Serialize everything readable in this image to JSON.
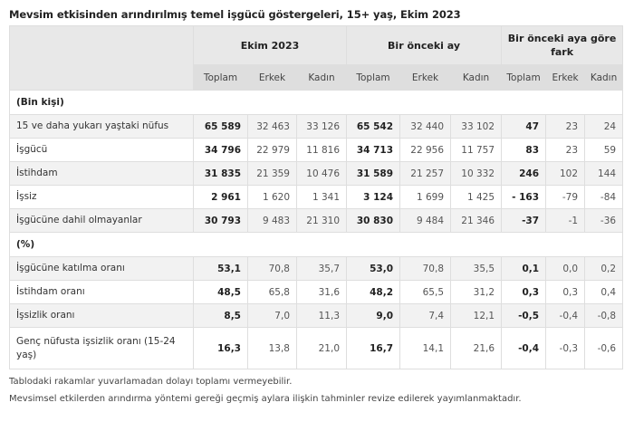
{
  "title": "Mevsim etkisinden arındırılmış temel işgücü göstergeleri, 15+ yaş, Ekim 2023",
  "header": {
    "groups": [
      "Ekim 2023",
      "Bir önceki ay",
      "Bir önceki aya göre fark"
    ],
    "subcolumns": [
      "Toplam",
      "Erkek",
      "Kadın",
      "Toplam",
      "Erkek",
      "Kadın",
      "Toplam",
      "Erkek",
      "Kadın"
    ]
  },
  "sections": [
    {
      "label": "(Bin kişi)",
      "rows": [
        {
          "label": "15 ve daha yukarı yaştaki nüfus",
          "values": [
            "65 589",
            "32 463",
            "33 126",
            "65 542",
            "32 440",
            "33 102",
            "47",
            "23",
            "24"
          ]
        },
        {
          "label": "İşgücü",
          "values": [
            "34 796",
            "22 979",
            "11 816",
            "34 713",
            "22 956",
            "11 757",
            "83",
            "23",
            "59"
          ]
        },
        {
          "label": "İstihdam",
          "values": [
            "31 835",
            "21 359",
            "10 476",
            "31 589",
            "21 257",
            "10 332",
            "246",
            "102",
            "144"
          ]
        },
        {
          "label": "İşsiz",
          "values": [
            "2 961",
            "1 620",
            "1 341",
            "3 124",
            "1 699",
            "1 425",
            "- 163",
            "-79",
            "-84"
          ]
        },
        {
          "label": "İşgücüne dahil olmayanlar",
          "values": [
            "30 793",
            "9 483",
            "21 310",
            "30 830",
            "9 484",
            "21 346",
            "-37",
            "-1",
            "-36"
          ]
        }
      ]
    },
    {
      "label": "(%)",
      "rows": [
        {
          "label": "İşgücüne katılma oranı",
          "values": [
            "53,1",
            "70,8",
            "35,7",
            "53,0",
            "70,8",
            "35,5",
            "0,1",
            "0,0",
            "0,2"
          ]
        },
        {
          "label": "İstihdam oranı",
          "values": [
            "48,5",
            "65,8",
            "31,6",
            "48,2",
            "65,5",
            "31,2",
            "0,3",
            "0,3",
            "0,4"
          ]
        },
        {
          "label": "İşsizlik oranı",
          "values": [
            "8,5",
            "7,0",
            "11,3",
            "9,0",
            "7,4",
            "12,1",
            "-0,5",
            "-0,4",
            "-0,8"
          ]
        },
        {
          "label": "Genç nüfusta işsizlik oranı (15-24 yaş)",
          "values": [
            "16,3",
            "13,8",
            "21,0",
            "16,7",
            "14,1",
            "21,6",
            "-0,4",
            "-0,3",
            "-0,6"
          ]
        }
      ]
    }
  ],
  "notes": [
    "Tablodaki rakamlar yuvarlamadan dolayı toplamı vermeyebilir.",
    "Mevsimsel etkilerden arındırma yöntemi gereği geçmiş aylara ilişkin tahminler revize edilerek yayımlanmaktadır."
  ]
}
